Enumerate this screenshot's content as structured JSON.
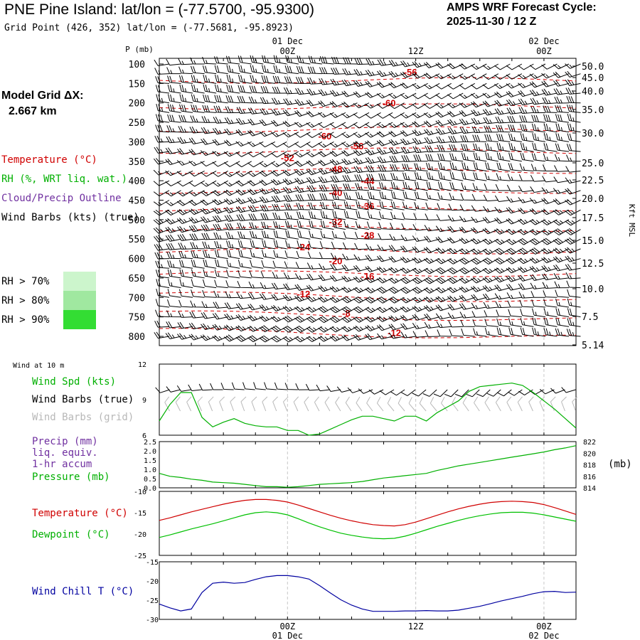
{
  "header": {
    "station_title": "PNE Pine Island:  lat/lon = (-77.5700, -95.9300)",
    "grid_point": "Grid Point (426, 352) lat/lon = (-77.5681, -95.8923)",
    "cycle_label": "AMPS WRF Forecast Cycle:",
    "cycle_value": "2025-11-30 / 12  Z",
    "model_grid_label": "Model Grid ΔX:",
    "model_grid_value": "2.667 km"
  },
  "colors": {
    "temperature": "#d00000",
    "rh": "#00b000",
    "cloud": "#7030a0",
    "wind": "#000000",
    "grid_barb": "#b8b8b8",
    "precip": "#7030a0",
    "pressure": "#00b000",
    "dewpoint": "#00c000",
    "windchill": "#0000a0",
    "rh70": "#ccf5cc",
    "rh80": "#a0e8a0",
    "rh90": "#33dd33"
  },
  "legend": {
    "temperature": "Temperature (°C)",
    "rh": "RH (%, WRT liq. wat.)",
    "cloud": "Cloud/Precip Outline",
    "wind": "Wind Barbs (kts) (true)",
    "rh_scale": [
      {
        "label": "RH > 70%",
        "color": "#ccf5cc"
      },
      {
        "label": "RH > 80%",
        "color": "#a0e8a0"
      },
      {
        "label": "RH > 90%",
        "color": "#33dd33"
      }
    ]
  },
  "chart_data": [
    {
      "name": "vertical-profile",
      "type": "contour",
      "ylabel_left": "P (mb)",
      "ylabel_right": "Kft MSL",
      "y_axis_pressure": [
        "100",
        "150",
        "200",
        "250",
        "300",
        "350",
        "400",
        "450",
        "500",
        "550",
        "600",
        "650",
        "700",
        "750",
        "800"
      ],
      "y_axis_height": [
        "50.0",
        "45.0",
        "40.0",
        "35.0",
        "30.0",
        "25.0",
        "22.5",
        "20.0",
        "17.5",
        "15.0",
        "12.5",
        "10.0",
        "7.5",
        "5.14"
      ],
      "x_top_ticks": [
        {
          "hour": 12,
          "time": "00Z",
          "date": "01 Dec"
        },
        {
          "hour": 24,
          "time": "12Z",
          "date": ""
        },
        {
          "hour": 36,
          "time": "00Z",
          "date": "02 Dec"
        }
      ],
      "x_range_hours": [
        0,
        39
      ],
      "temperature_contours": [
        {
          "label": "-56",
          "p": 120,
          "hour": 23.5
        },
        {
          "label": "-60",
          "p": 200,
          "hour": 21.5
        },
        {
          "label": "-60",
          "p": 285,
          "hour": 15.5
        },
        {
          "label": "-56",
          "p": 310,
          "hour": 18.5
        },
        {
          "label": "-52",
          "p": 340,
          "hour": 12
        },
        {
          "label": "-48",
          "p": 370,
          "hour": 16.5
        },
        {
          "label": "-44",
          "p": 400,
          "hour": 19.5
        },
        {
          "label": "-40",
          "p": 430,
          "hour": 16.5
        },
        {
          "label": "-36",
          "p": 465,
          "hour": 19.5
        },
        {
          "label": "-32",
          "p": 505,
          "hour": 16.5
        },
        {
          "label": "-28",
          "p": 540,
          "hour": 19.5
        },
        {
          "label": "-24",
          "p": 570,
          "hour": 13.5
        },
        {
          "label": "-20",
          "p": 605,
          "hour": 16.5
        },
        {
          "label": "-16",
          "p": 645,
          "hour": 19.5
        },
        {
          "label": "-12",
          "p": 690,
          "hour": 13.5
        },
        {
          "label": "-8",
          "p": 740,
          "hour": 17.5
        },
        {
          "label": "-12",
          "p": 790,
          "hour": 22
        }
      ]
    },
    {
      "name": "wind-10m",
      "type": "line",
      "title": "Wind at 10 m",
      "ylim": [
        6,
        12
      ],
      "y_ticks": [
        "12",
        "9",
        "6"
      ],
      "legend": [
        "Wind Spd (kts)",
        "Wind Barbs (true)",
        "Wind Barbs (grid)"
      ],
      "x": [
        0,
        1,
        2,
        3,
        4,
        5,
        6,
        7,
        8,
        9,
        10,
        11,
        12,
        13,
        14,
        15,
        16,
        17,
        18,
        19,
        20,
        21,
        22,
        23,
        24,
        25,
        26,
        27,
        28,
        29,
        30,
        31,
        32,
        33,
        34,
        35,
        36,
        37,
        38,
        39
      ],
      "series": [
        {
          "name": "Wind Spd (kts)",
          "values": [
            7.2,
            8.6,
            9.6,
            9.6,
            7.5,
            6.7,
            7.1,
            7.4,
            7.0,
            6.8,
            6.7,
            6.7,
            6.4,
            6.4,
            6.0,
            6.1,
            6.5,
            6.9,
            7.3,
            7.6,
            7.6,
            7.4,
            7.2,
            7.6,
            7.6,
            7.2,
            7.9,
            8.4,
            8.9,
            9.7,
            10.1,
            10.2,
            10.3,
            10.4,
            10.2,
            9.6,
            8.9,
            8.2,
            7.4,
            6.6
          ]
        }
      ]
    },
    {
      "name": "precip-pressure",
      "type": "line",
      "legend": [
        "Precip (mm)",
        "liq. equiv.",
        "1-hr accum",
        "Pressure (mb)"
      ],
      "y_left_ticks": [
        "2.5",
        "2.0",
        "1.5",
        "1.0",
        "0.5",
        "0.0"
      ],
      "y_right_ticks": [
        "822",
        "820",
        "818",
        "816",
        "814"
      ],
      "y_right_unit": "(mb)",
      "ylim_right": [
        814,
        822
      ],
      "x": [
        0,
        1,
        2,
        3,
        4,
        5,
        6,
        7,
        8,
        9,
        10,
        11,
        12,
        13,
        14,
        15,
        16,
        17,
        18,
        19,
        20,
        21,
        22,
        23,
        24,
        25,
        26,
        27,
        28,
        29,
        30,
        31,
        32,
        33,
        34,
        35,
        36,
        37,
        38,
        39
      ],
      "series": [
        {
          "name": "Pressure (mb)",
          "values": [
            816.5,
            816.0,
            815.8,
            815.5,
            815.3,
            815.0,
            814.9,
            814.8,
            814.6,
            814.4,
            814.2,
            814.2,
            814.1,
            814.2,
            814.4,
            814.6,
            814.7,
            814.8,
            814.9,
            815.1,
            815.4,
            815.7,
            815.9,
            816.1,
            816.3,
            816.5,
            817.0,
            817.4,
            817.8,
            818.1,
            818.4,
            818.7,
            819.0,
            819.3,
            819.6,
            819.9,
            820.2,
            820.6,
            820.9,
            821.3
          ]
        }
      ]
    },
    {
      "name": "temperature-dewpoint",
      "type": "line",
      "ylim": [
        -25,
        -10
      ],
      "y_ticks": [
        "-10",
        "-15",
        "-20",
        "-25"
      ],
      "legend": [
        "Temperature (°C)",
        "Dewpoint (°C)"
      ],
      "x": [
        0,
        1,
        2,
        3,
        4,
        5,
        6,
        7,
        8,
        9,
        10,
        11,
        12,
        13,
        14,
        15,
        16,
        17,
        18,
        19,
        20,
        21,
        22,
        23,
        24,
        25,
        26,
        27,
        28,
        29,
        30,
        31,
        32,
        33,
        34,
        35,
        36,
        37,
        38,
        39
      ],
      "series": [
        {
          "name": "Temperature (°C)",
          "values": [
            -16.8,
            -16.2,
            -15.5,
            -14.8,
            -14.2,
            -13.6,
            -13.0,
            -12.5,
            -12.1,
            -11.9,
            -11.9,
            -12.1,
            -12.5,
            -13.2,
            -14.0,
            -14.8,
            -15.6,
            -16.3,
            -16.9,
            -17.4,
            -17.8,
            -18.0,
            -18.1,
            -17.8,
            -17.2,
            -16.4,
            -15.6,
            -14.8,
            -14.1,
            -13.5,
            -13.0,
            -12.6,
            -12.4,
            -12.3,
            -12.4,
            -12.6,
            -13.1,
            -13.8,
            -14.6,
            -15.4
          ]
        },
        {
          "name": "Dewpoint (°C)",
          "values": [
            -20.8,
            -20.2,
            -19.5,
            -18.8,
            -18.2,
            -17.6,
            -16.9,
            -16.2,
            -15.5,
            -15.0,
            -14.8,
            -15.0,
            -15.5,
            -16.4,
            -17.4,
            -18.3,
            -19.1,
            -19.8,
            -20.3,
            -20.7,
            -21.0,
            -21.1,
            -21.0,
            -20.5,
            -19.8,
            -19.0,
            -18.2,
            -17.5,
            -16.8,
            -16.2,
            -15.7,
            -15.3,
            -15.0,
            -14.9,
            -14.9,
            -15.1,
            -15.5,
            -16.0,
            -16.5,
            -17.0
          ]
        }
      ]
    },
    {
      "name": "wind-chill",
      "type": "line",
      "ylim": [
        -30,
        -15
      ],
      "y_ticks": [
        "-15",
        "-20",
        "-25",
        "-30"
      ],
      "legend": [
        "Wind Chill T (°C)"
      ],
      "x_bottom_ticks": [
        {
          "hour": 12,
          "time": "00Z",
          "date": "01 Dec"
        },
        {
          "hour": 24,
          "time": "12Z",
          "date": ""
        },
        {
          "hour": 36,
          "time": "00Z",
          "date": "02 Dec"
        }
      ],
      "x": [
        0,
        1,
        2,
        3,
        4,
        5,
        6,
        7,
        8,
        9,
        10,
        11,
        12,
        13,
        14,
        15,
        16,
        17,
        18,
        19,
        20,
        21,
        22,
        23,
        24,
        25,
        26,
        27,
        28,
        29,
        30,
        31,
        32,
        33,
        34,
        35,
        36,
        37,
        38,
        39
      ],
      "series": [
        {
          "name": "Wind Chill T (°C)",
          "values": [
            -26.0,
            -27.0,
            -27.8,
            -27.3,
            -23.0,
            -20.6,
            -20.3,
            -20.6,
            -20.4,
            -19.6,
            -18.9,
            -18.6,
            -18.6,
            -18.9,
            -19.5,
            -21.2,
            -23.1,
            -24.9,
            -26.3,
            -27.3,
            -27.9,
            -27.9,
            -27.9,
            -27.8,
            -27.8,
            -27.7,
            -27.8,
            -27.8,
            -27.6,
            -27.1,
            -26.6,
            -25.9,
            -25.2,
            -24.6,
            -24.0,
            -23.3,
            -22.8,
            -22.7,
            -23.0,
            -22.9
          ]
        }
      ]
    }
  ]
}
